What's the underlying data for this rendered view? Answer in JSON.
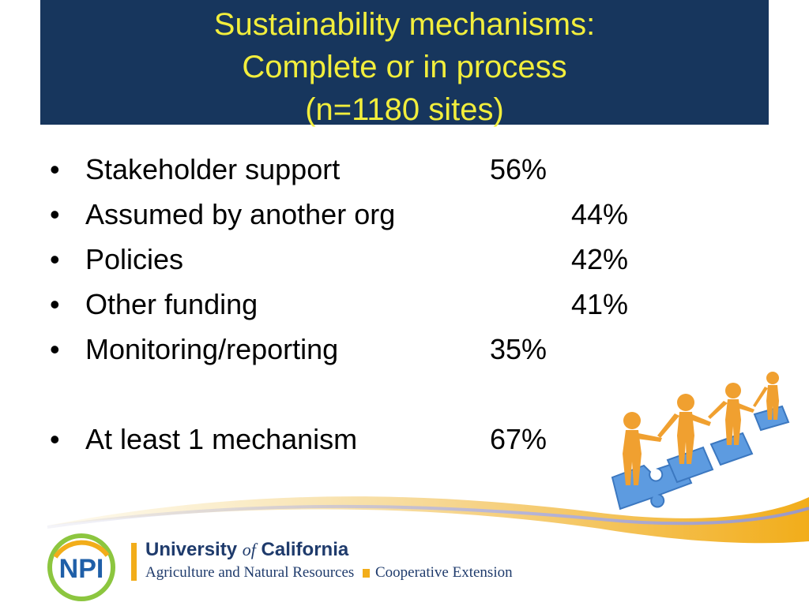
{
  "title": {
    "line1": "Sustainability mechanisms:",
    "line2": "Complete or in process",
    "line3": "(n=1180 sites)"
  },
  "bullet_char": "•",
  "items": [
    {
      "label": "Stakeholder support",
      "value": "56%"
    },
    {
      "label": "Assumed by another org",
      "value": "44%"
    },
    {
      "label": "Policies",
      "value": "42%"
    },
    {
      "label": "Other funding",
      "value": "41%"
    },
    {
      "label": "Monitoring/reporting",
      "value": "35%"
    },
    {
      "label": "At least 1 mechanism",
      "value": "67%"
    }
  ],
  "footer": {
    "uc_name_part1": "University",
    "uc_name_of": "of",
    "uc_name_part2": "California",
    "uc_subtitle": "Agriculture and Natural Resources",
    "coop_ext": "Cooperative Extension",
    "logo_text": "NPI"
  },
  "colors": {
    "title_bg": "#17365d",
    "title_text": "#f2ee3c",
    "accent_gold": "#f2ad1a",
    "uc_blue": "#1f3b6c",
    "puzzle_blue": "#5d9be0",
    "figure_orange": "#f0a030"
  }
}
